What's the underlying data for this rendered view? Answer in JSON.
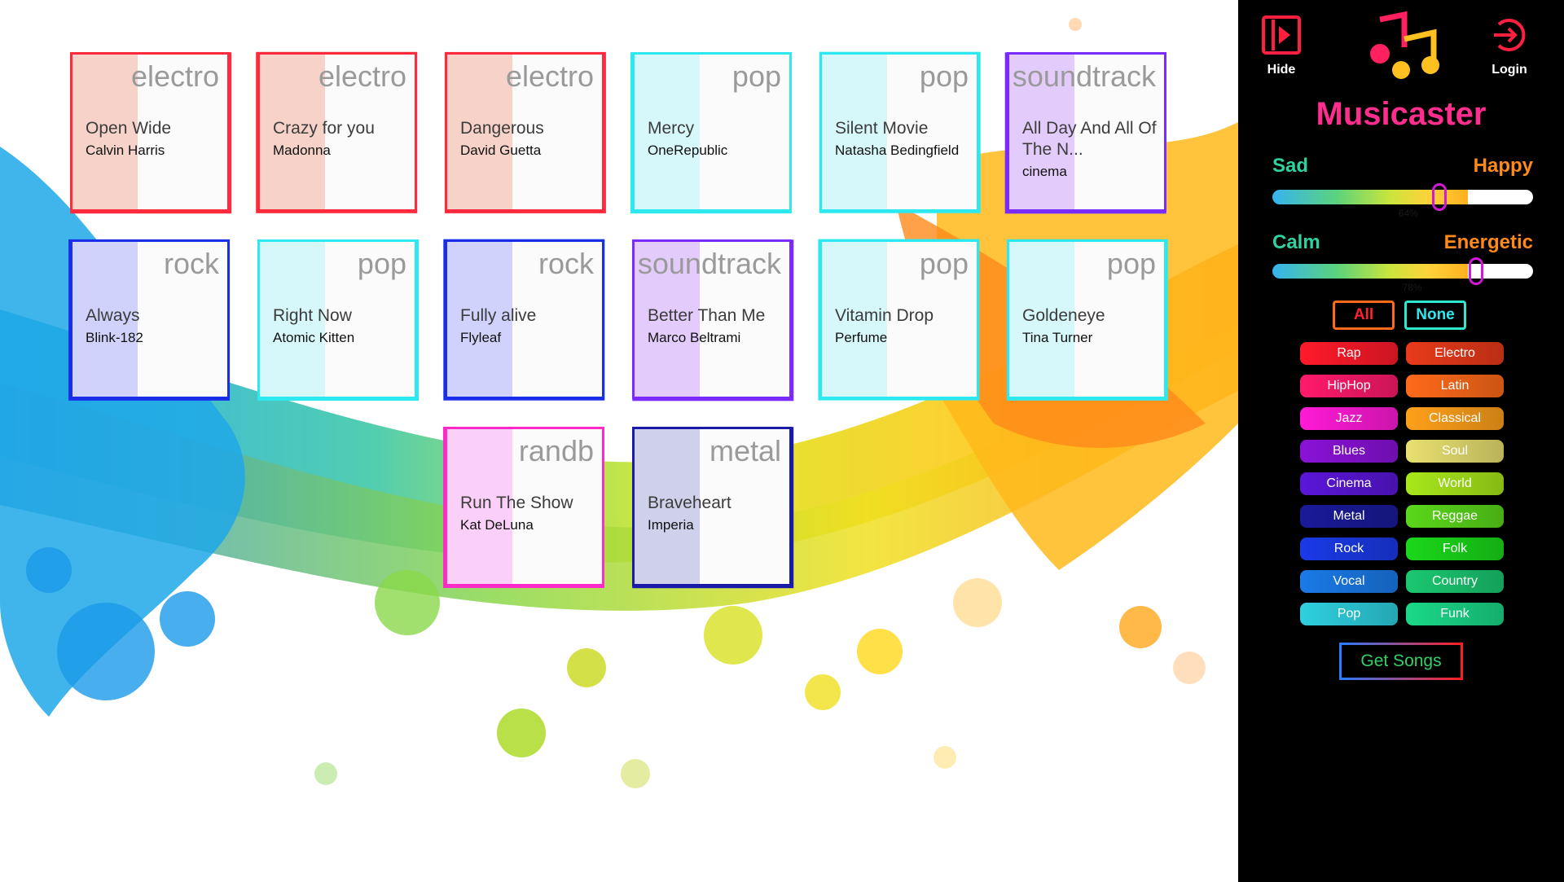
{
  "songs": [
    {
      "genre": "electro",
      "title": "Open Wide",
      "artist": "Calvin Harris",
      "color": "#ff2b3d",
      "tint": "#f6d2c8"
    },
    {
      "genre": "electro",
      "title": "Crazy for you",
      "artist": "Madonna",
      "color": "#ff2b3d",
      "tint": "#f6d2c8"
    },
    {
      "genre": "electro",
      "title": "Dangerous",
      "artist": "David Guetta",
      "color": "#ff2b3d",
      "tint": "#f6d2c8"
    },
    {
      "genre": "pop",
      "title": "Mercy",
      "artist": "OneRepublic",
      "color": "#2ee8f0",
      "tint": "#d6f8fb"
    },
    {
      "genre": "pop",
      "title": "Silent Movie",
      "artist": "Natasha Bedingfield",
      "color": "#2ee8f0",
      "tint": "#d6f8fb"
    },
    {
      "genre": "soundtrack",
      "title": "All Day And All Of The N...",
      "artist": "cinema",
      "color": "#7a2bff",
      "tint": "#e3ccfb"
    },
    {
      "genre": "rock",
      "title": "Always",
      "artist": "Blink-182",
      "color": "#1a2ee8",
      "tint": "#d0d2fb"
    },
    {
      "genre": "pop",
      "title": "Right Now",
      "artist": "Atomic Kitten",
      "color": "#2ee8f0",
      "tint": "#d6f8fb"
    },
    {
      "genre": "rock",
      "title": "Fully alive",
      "artist": "Flyleaf",
      "color": "#1a2ee8",
      "tint": "#d0d2fb"
    },
    {
      "genre": "soundtrack",
      "title": "Better Than Me",
      "artist": "Marco Beltrami",
      "color": "#7a2bff",
      "tint": "#e3ccfb"
    },
    {
      "genre": "pop",
      "title": "Vitamin Drop",
      "artist": "Perfume",
      "color": "#2ee8f0",
      "tint": "#d6f8fb"
    },
    {
      "genre": "pop",
      "title": "Goldeneye",
      "artist": "Tina Turner",
      "color": "#2ee8f0",
      "tint": "#d6f8fb"
    },
    {
      "genre": "randb",
      "title": "Run The Show",
      "artist": "Kat DeLuna",
      "color": "#ff2bc8",
      "tint": "#fbd0f8"
    },
    {
      "genre": "metal",
      "title": "Braveheart",
      "artist": "Imperia",
      "color": "#1a1aa8",
      "tint": "#cfd0ea"
    }
  ],
  "panel": {
    "hide_label": "Hide",
    "login_label": "Login",
    "app_title": "Musicaster",
    "mood": {
      "sad_label": "Sad",
      "happy_label": "Happy",
      "value": 0.64,
      "value_text": "64%",
      "calm_label": "Calm",
      "energetic_label": "Energetic",
      "energy_value": 0.78,
      "energy_text": "78%"
    },
    "all_label": "All",
    "none_label": "None",
    "genres_left": [
      {
        "label": "Rap",
        "color": "#ff1a2a"
      },
      {
        "label": "HipHop",
        "color": "#ff1a6b"
      },
      {
        "label": "Jazz",
        "color": "#ff1ad6"
      },
      {
        "label": "Blues",
        "color": "#8a12d8"
      },
      {
        "label": "Cinema",
        "color": "#5a16d8"
      },
      {
        "label": "Metal",
        "color": "#1a1a9a"
      },
      {
        "label": "Rock",
        "color": "#1a3ae8"
      },
      {
        "label": "Vocal",
        "color": "#1a7ae8"
      },
      {
        "label": "Pop",
        "color": "#2ed0e0"
      }
    ],
    "genres_right": [
      {
        "label": "Electro",
        "color": "#e83a1a"
      },
      {
        "label": "Latin",
        "color": "#ff6a1a"
      },
      {
        "label": "Classical",
        "color": "#ffa01a"
      },
      {
        "label": "Soul",
        "color": "#e8e070"
      },
      {
        "label": "World",
        "color": "#a8e81a"
      },
      {
        "label": "Reggae",
        "color": "#5ad81a"
      },
      {
        "label": "Folk",
        "color": "#1ad81a"
      },
      {
        "label": "Country",
        "color": "#1ac870"
      },
      {
        "label": "Funk",
        "color": "#1ad888"
      }
    ],
    "get_songs_label": "Get Songs"
  }
}
